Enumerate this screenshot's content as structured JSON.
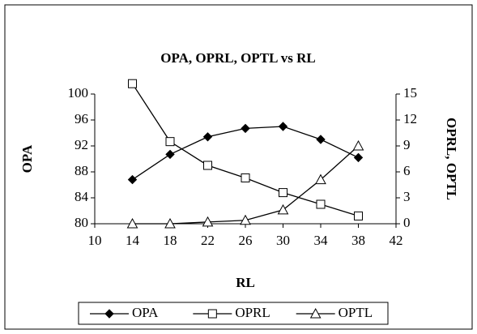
{
  "chart_data": {
    "type": "line",
    "title": "OPA, OPRL, OPTL vs RL",
    "xlabel": "RL",
    "ylabel": "OPA",
    "y2label": "OPRL, OPTL",
    "x": [
      14,
      18,
      22,
      26,
      30,
      34,
      38
    ],
    "xlim": [
      10,
      42
    ],
    "xticks": [
      10,
      14,
      18,
      22,
      26,
      30,
      34,
      38,
      42
    ],
    "ylim": [
      80,
      100
    ],
    "yticks": [
      80,
      84,
      88,
      92,
      96,
      100
    ],
    "y2lim": [
      0,
      15
    ],
    "y2ticks": [
      0,
      3,
      6,
      9,
      12,
      15
    ],
    "grid": false,
    "legend": "bottom",
    "series": [
      {
        "name": "OPA",
        "color": "#000000",
        "marker": "diamond",
        "values": [
          86.8,
          90.7,
          93.4,
          94.7,
          95,
          93,
          90.2
        ]
      },
      {
        "name": "OPRL",
        "color": "#000000",
        "marker": "square",
        "axis": "y2",
        "values": [
          16.2,
          9.5,
          6.75,
          5.3,
          3.6,
          2.25,
          0.9
        ]
      },
      {
        "name": "OPTL",
        "color": "#000000",
        "marker": "triangle",
        "axis": "y2",
        "values": [
          0,
          0,
          0.2,
          0.4,
          1.6,
          5.1,
          9.0
        ]
      }
    ]
  }
}
